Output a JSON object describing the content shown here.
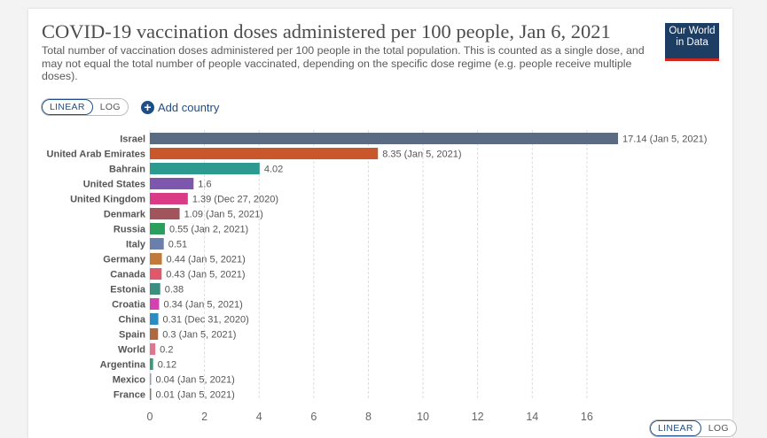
{
  "header": {
    "title": "COVID-19 vaccination doses administered per 100 people, Jan 6, 2021",
    "subtitle": "Total number of vaccination doses administered per 100 people in the total population. This is counted as a single dose, and may not equal the total number of people vaccinated, depending on the specific dose regime (e.g. people receive multiple doses).",
    "logo_line1": "Our World",
    "logo_line2": "in Data"
  },
  "controls": {
    "linear_label": "LINEAR",
    "log_label": "LOG",
    "add_country_label": "Add country",
    "plus_icon": "+"
  },
  "chart_data": {
    "type": "bar",
    "orientation": "horizontal",
    "title": "COVID-19 vaccination doses administered per 100 people, Jan 6, 2021",
    "xlim": [
      0,
      17.14
    ],
    "xticks": [
      0,
      2,
      4,
      6,
      8,
      10,
      12,
      14,
      16
    ],
    "grid": true,
    "scale": "linear",
    "bars": [
      {
        "category": "Israel",
        "value": 17.14,
        "label": "17.14 (Jan 5, 2021)",
        "color": "#5b6b82"
      },
      {
        "category": "United Arab Emirates",
        "value": 8.35,
        "label": "8.35 (Jan 5, 2021)",
        "color": "#c9572c"
      },
      {
        "category": "Bahrain",
        "value": 4.02,
        "label": "4.02",
        "color": "#2d9a8f"
      },
      {
        "category": "United States",
        "value": 1.6,
        "label": "1.6",
        "color": "#7d57ad"
      },
      {
        "category": "United Kingdom",
        "value": 1.39,
        "label": "1.39 (Dec 27, 2020)",
        "color": "#d93b86"
      },
      {
        "category": "Denmark",
        "value": 1.09,
        "label": "1.09 (Jan 5, 2021)",
        "color": "#a2545d"
      },
      {
        "category": "Russia",
        "value": 0.55,
        "label": "0.55 (Jan 2, 2021)",
        "color": "#2a9e5c"
      },
      {
        "category": "Italy",
        "value": 0.51,
        "label": "0.51",
        "color": "#6b7fae"
      },
      {
        "category": "Germany",
        "value": 0.44,
        "label": "0.44 (Jan 5, 2021)",
        "color": "#c27a3b"
      },
      {
        "category": "Canada",
        "value": 0.43,
        "label": "0.43 (Jan 5, 2021)",
        "color": "#e0596a"
      },
      {
        "category": "Estonia",
        "value": 0.38,
        "label": "0.38",
        "color": "#3a8f80"
      },
      {
        "category": "Croatia",
        "value": 0.34,
        "label": "0.34 (Jan 5, 2021)",
        "color": "#d144b0"
      },
      {
        "category": "China",
        "value": 0.31,
        "label": "0.31 (Dec 31, 2020)",
        "color": "#2b8cc4"
      },
      {
        "category": "Spain",
        "value": 0.3,
        "label": "0.3 (Jan 5, 2021)",
        "color": "#b0693f"
      },
      {
        "category": "World",
        "value": 0.2,
        "label": "0.2",
        "color": "#e07590"
      },
      {
        "category": "Argentina",
        "value": 0.12,
        "label": "0.12",
        "color": "#3b9a7a"
      },
      {
        "category": "Mexico",
        "value": 0.04,
        "label": "0.04 (Jan 5, 2021)",
        "color": "#9a9ab0"
      },
      {
        "category": "France",
        "value": 0.01,
        "label": "0.01 (Jan 5, 2021)",
        "color": "#8f7a6a"
      }
    ]
  }
}
